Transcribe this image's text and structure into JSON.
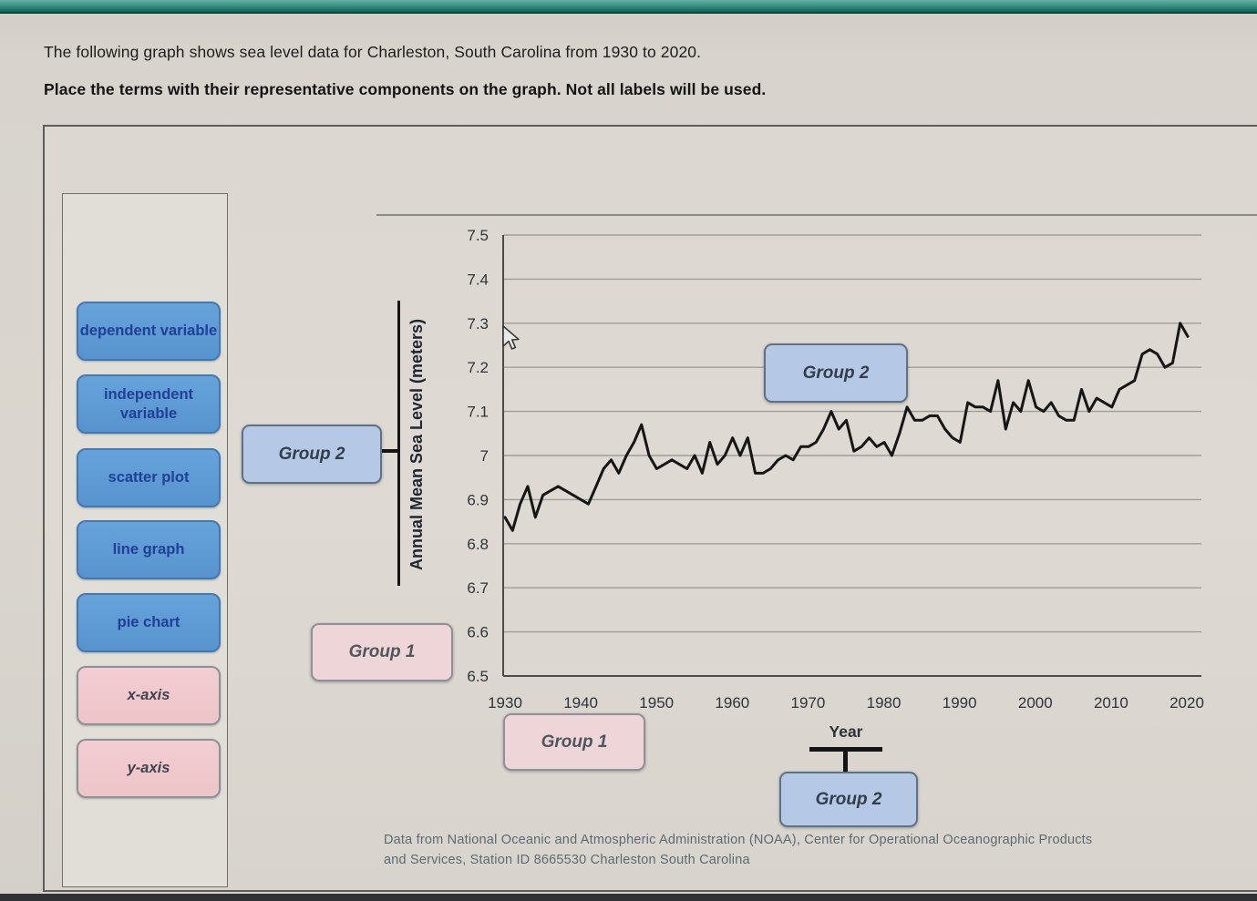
{
  "instructions": {
    "line1": "The following graph shows sea level data for Charleston, South Carolina from 1930 to 2020.",
    "line2": "Place the terms with their representative components on the graph. Not all labels will be used."
  },
  "term_bank": {
    "items": [
      {
        "label": "dependent variable",
        "type": "blue"
      },
      {
        "label": "independent variable",
        "type": "blue"
      },
      {
        "label": "scatter plot",
        "type": "blue"
      },
      {
        "label": "line graph",
        "type": "blue"
      },
      {
        "label": "pie chart",
        "type": "blue"
      },
      {
        "label": "x-axis",
        "type": "pink"
      },
      {
        "label": "y-axis",
        "type": "pink"
      }
    ]
  },
  "drop_zones": {
    "group2_y_axis_title": "Group 2",
    "group2_plot_area": "Group 2",
    "group1_y_tick_labels": "Group 1",
    "group1_x_tick_labels": "Group 1",
    "group2_x_axis_title": "Group 2"
  },
  "chart_data": {
    "type": "line",
    "xlabel": "Year",
    "ylabel": "Annual Mean Sea Level (meters)",
    "xlim": [
      1930,
      2020
    ],
    "ylim": [
      6.5,
      7.5
    ],
    "grid": true,
    "x_ticks": [
      1930,
      1940,
      1950,
      1960,
      1970,
      1980,
      1990,
      2000,
      2010,
      2020
    ],
    "y_ticks": [
      "7.5",
      "7.4",
      "7.3",
      "7.2",
      "7.1",
      "7",
      "6.9",
      "6.8",
      "6.7",
      "6.6",
      "6.5"
    ],
    "series": [
      {
        "name": "Annual Mean Sea Level",
        "x_start": 1930,
        "x_step": 1,
        "values": [
          6.86,
          6.83,
          6.89,
          6.93,
          6.86,
          6.91,
          6.92,
          6.93,
          6.92,
          6.91,
          6.9,
          6.89,
          6.93,
          6.97,
          6.99,
          6.96,
          7.0,
          7.03,
          7.07,
          7.0,
          6.97,
          6.98,
          6.99,
          6.98,
          6.97,
          7.0,
          6.96,
          7.03,
          6.98,
          7.0,
          7.04,
          7.0,
          7.04,
          6.96,
          6.96,
          6.97,
          6.99,
          7.0,
          6.99,
          7.02,
          7.02,
          7.03,
          7.06,
          7.1,
          7.06,
          7.08,
          7.01,
          7.02,
          7.04,
          7.02,
          7.03,
          7.0,
          7.05,
          7.11,
          7.08,
          7.08,
          7.09,
          7.09,
          7.06,
          7.04,
          7.03,
          7.12,
          7.11,
          7.11,
          7.1,
          7.17,
          7.06,
          7.12,
          7.1,
          7.17,
          7.11,
          7.1,
          7.12,
          7.09,
          7.08,
          7.08,
          7.15,
          7.1,
          7.13,
          7.12,
          7.11,
          7.15,
          7.16,
          7.17,
          7.23,
          7.24,
          7.23,
          7.2,
          7.21,
          7.3,
          7.27
        ]
      }
    ],
    "line_color": "#161616",
    "grid_color": "#9e9e99",
    "axis_color": "#4b4b4a",
    "tick_text_color": "#2e343c"
  },
  "source_note": {
    "line1": "Data from National Oceanic and Atmospheric Administration (NOAA), Center for Operational Oceanographic Products",
    "line2": "and Services, Station ID 8665530 Charleston South Carolina"
  }
}
